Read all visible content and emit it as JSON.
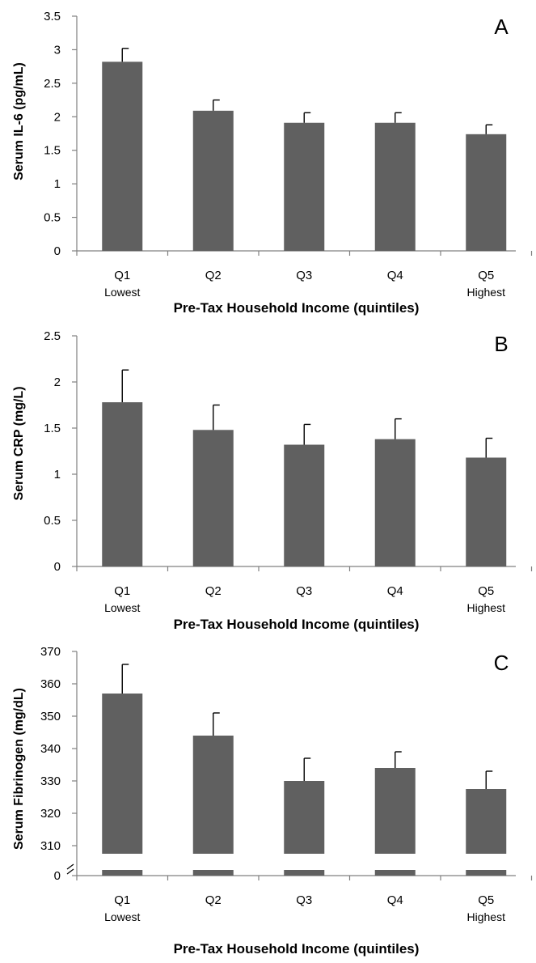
{
  "colors": {
    "bar": "#606060",
    "axis": "#808080",
    "error": "#000000"
  },
  "chart_data": [
    {
      "type": "bar",
      "panel_label": "A",
      "ylabel": "Serum IL-6 (pg/mL)",
      "xlabel": "Pre-Tax Household Income (quintiles)",
      "categories": [
        "Q1",
        "Q2",
        "Q3",
        "Q4",
        "Q5"
      ],
      "category_sublabels": [
        "Lowest",
        "",
        "",
        "",
        "Highest"
      ],
      "values": [
        2.82,
        2.09,
        1.91,
        1.91,
        1.74
      ],
      "error_upper": [
        3.02,
        2.25,
        2.06,
        2.06,
        1.88
      ],
      "ylim": [
        0,
        3.5
      ],
      "yticks": [
        "0",
        "0.5",
        "1",
        "1.5",
        "2",
        "2.5",
        "3",
        "3.5"
      ],
      "grid": false
    },
    {
      "type": "bar",
      "panel_label": "B",
      "ylabel": "Serum CRP (mg/L)",
      "xlabel": "Pre-Tax Household Income (quintiles)",
      "categories": [
        "Q1",
        "Q2",
        "Q3",
        "Q4",
        "Q5"
      ],
      "category_sublabels": [
        "Lowest",
        "",
        "",
        "",
        "Highest"
      ],
      "values": [
        1.78,
        1.48,
        1.32,
        1.38,
        1.18
      ],
      "error_upper": [
        2.13,
        1.75,
        1.54,
        1.6,
        1.39
      ],
      "ylim": [
        0,
        2.5
      ],
      "yticks": [
        "0",
        "0.5",
        "1",
        "1.5",
        "2",
        "2.5"
      ],
      "grid": false
    },
    {
      "type": "bar",
      "panel_label": "C",
      "ylabel": "Serum Fibrinogen (mg/dL)",
      "xlabel": "Pre-Tax Household Income (quintiles)",
      "categories": [
        "Q1",
        "Q2",
        "Q3",
        "Q4",
        "Q5"
      ],
      "category_sublabels": [
        "Lowest",
        "",
        "",
        "",
        "Highest"
      ],
      "values": [
        357,
        344,
        330,
        334,
        327.5
      ],
      "error_upper": [
        366,
        351,
        337,
        339,
        333
      ],
      "ylim": [
        300,
        370
      ],
      "axis_break": true,
      "yticks": [
        "0",
        "310",
        "320",
        "330",
        "340",
        "350",
        "360",
        "370"
      ],
      "grid": false
    }
  ]
}
